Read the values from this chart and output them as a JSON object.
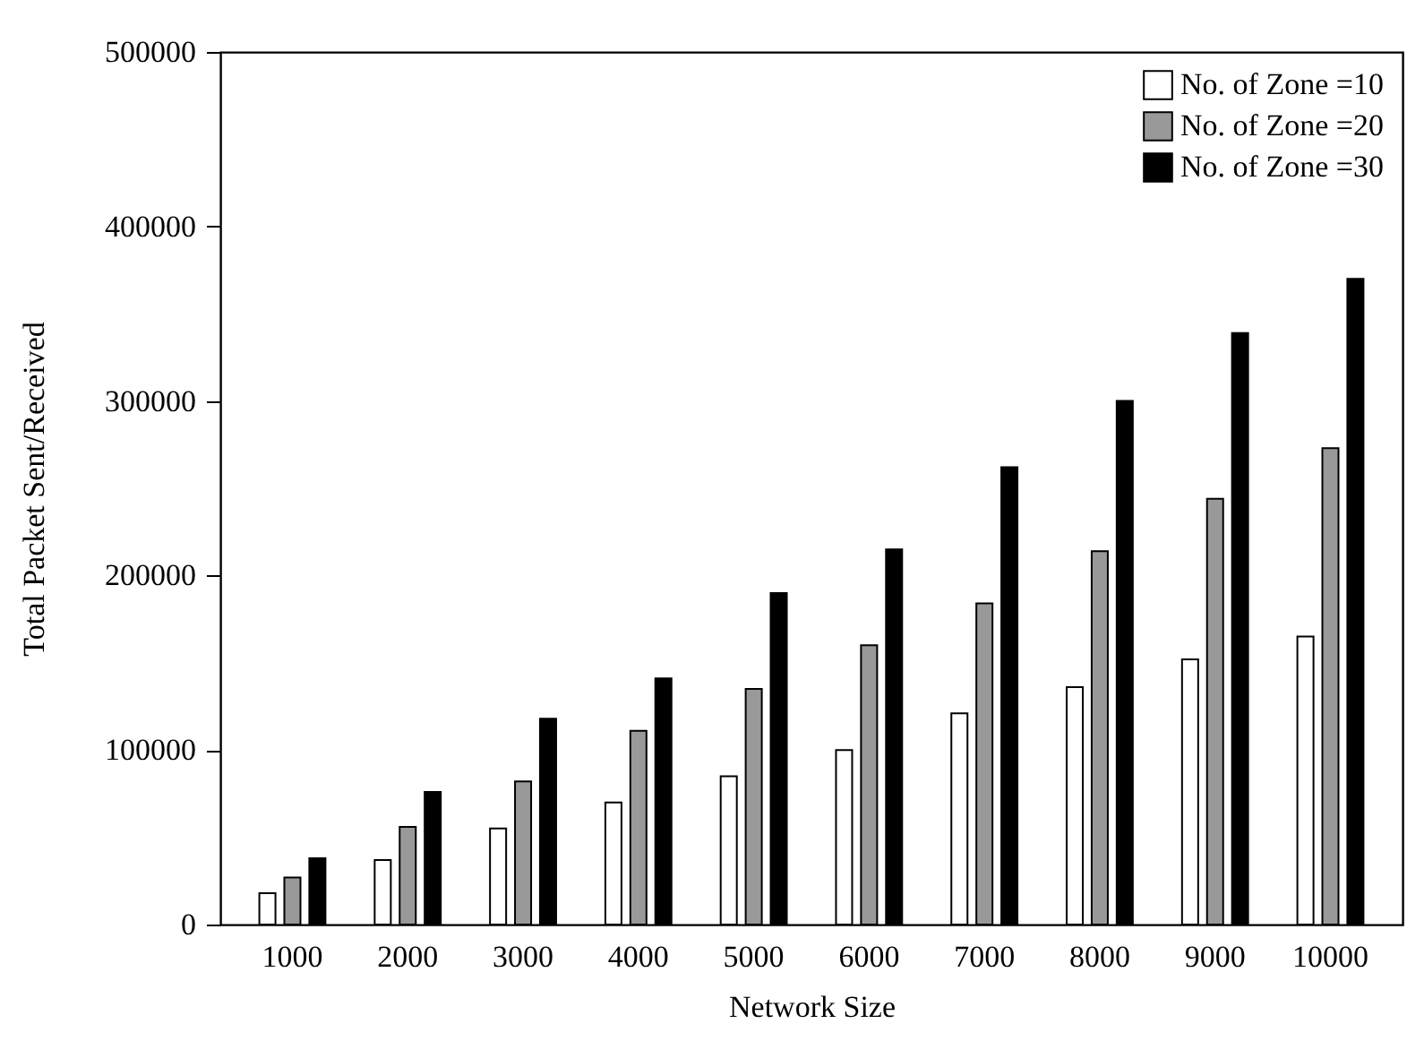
{
  "chart_data": {
    "type": "bar",
    "xlabel": "Network Size",
    "ylabel": "Total Packet Sent/Received",
    "categories": [
      "1000",
      "2000",
      "3000",
      "4000",
      "5000",
      "6000",
      "7000",
      "8000",
      "9000",
      "10000"
    ],
    "series": [
      {
        "name": "No. of Zone =10",
        "color": "#ffffff",
        "values": [
          18000,
          37000,
          55000,
          70000,
          85000,
          100000,
          121000,
          136000,
          152000,
          165000
        ]
      },
      {
        "name": "No. of Zone =20",
        "color": "#999999",
        "values": [
          27000,
          56000,
          82000,
          111000,
          135000,
          160000,
          184000,
          214000,
          244000,
          273000
        ]
      },
      {
        "name": "No. of Zone =30",
        "color": "#000000",
        "values": [
          38000,
          76000,
          118000,
          141000,
          190000,
          215000,
          262000,
          300000,
          339000,
          370000
        ]
      }
    ],
    "ylim": [
      0,
      500000
    ],
    "yticks": [
      0,
      100000,
      200000,
      300000,
      400000,
      500000
    ],
    "grid": false,
    "legend": "top right"
  }
}
